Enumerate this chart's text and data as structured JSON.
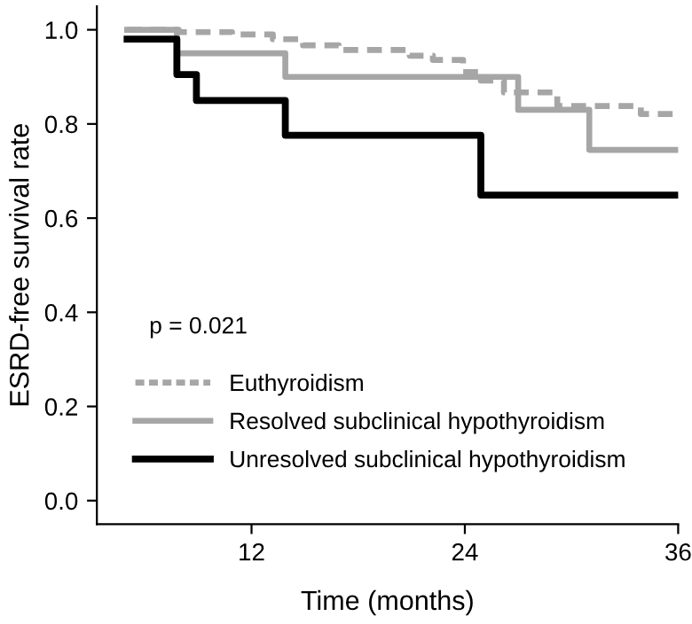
{
  "chart_data": {
    "type": "step",
    "xlabel": "Time (months)",
    "ylabel": "ESRD-free survival rate",
    "xlim": [
      3.3,
      36
    ],
    "xticks": [
      12,
      24,
      36
    ],
    "ylim": [
      -0.05,
      1.05
    ],
    "yticks": [
      {
        "value": 0,
        "label": "0.0"
      },
      {
        "value": 0.2,
        "label": "0.2"
      },
      {
        "value": 0.4,
        "label": "0.4"
      },
      {
        "value": 0.6,
        "label": "0.6"
      },
      {
        "value": 0.8,
        "label": "0.8"
      },
      {
        "value": 1.0,
        "label": "1.0"
      }
    ],
    "grid": false,
    "legend": "bottom left",
    "marker": "none",
    "annotations": [
      "p = 0.021"
    ],
    "series": [
      {
        "name": "Euthyroidism",
        "color": "#a6a6a6",
        "line_style": "dashed",
        "x": [
          5,
          7.9,
          10.9,
          13.2,
          14.9,
          16.9,
          20.9,
          22.2,
          23.9,
          24.9,
          26.2,
          29.2,
          33.9,
          36
        ],
        "values": [
          1.0,
          0.995,
          0.99,
          0.98,
          0.967,
          0.957,
          0.945,
          0.936,
          0.91,
          0.892,
          0.867,
          0.838,
          0.821,
          0.821
        ]
      },
      {
        "name": "Resolved subclinical hypothyroidism",
        "color": "#a6a6a6",
        "line_style": "solid",
        "x": [
          5,
          7.8,
          13.9,
          27.0,
          31.0,
          36
        ],
        "values": [
          1.0,
          0.95,
          0.9,
          0.83,
          0.745,
          0.745
        ]
      },
      {
        "name": "Unresolved subclinical hypothyroidism",
        "color": "#000000",
        "line_style": "solid",
        "x": [
          5,
          7.8,
          8.9,
          13.9,
          24.9,
          36
        ],
        "values": [
          0.98,
          0.905,
          0.85,
          0.776,
          0.649,
          0.649
        ]
      }
    ]
  }
}
